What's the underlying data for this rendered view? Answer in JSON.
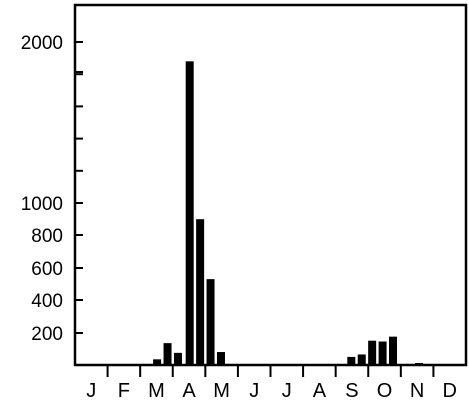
{
  "chart_data": {
    "type": "bar",
    "title": "",
    "xlabel": "",
    "ylabel": "",
    "months": [
      "J",
      "F",
      "M",
      "A",
      "M",
      "J",
      "J",
      "A",
      "S",
      "O",
      "N",
      "D"
    ],
    "y_scale": "broken: linear 0–1000 with 200-unit ticks, then compressed 1000–2000 upper segment",
    "ylim": [
      0,
      2100
    ],
    "y_tick_labels": [
      "200",
      "400",
      "600",
      "800",
      "1000",
      "2000"
    ],
    "grid": false,
    "legend": "none",
    "bar_color": "#000000",
    "bars": [
      {
        "month_position": 2.52,
        "value": 35
      },
      {
        "month_position": 2.84,
        "value": 135
      },
      {
        "month_position": 3.16,
        "value": 75
      },
      {
        "month_position": 3.52,
        "value": 1880
      },
      {
        "month_position": 3.84,
        "value": 900
      },
      {
        "month_position": 4.16,
        "value": 530
      },
      {
        "month_position": 4.48,
        "value": 80
      },
      {
        "month_position": 8.48,
        "value": 50
      },
      {
        "month_position": 8.8,
        "value": 65
      },
      {
        "month_position": 9.12,
        "value": 150
      },
      {
        "month_position": 9.44,
        "value": 145
      },
      {
        "month_position": 9.76,
        "value": 175
      },
      {
        "month_position": 10.56,
        "value": 10
      }
    ]
  }
}
